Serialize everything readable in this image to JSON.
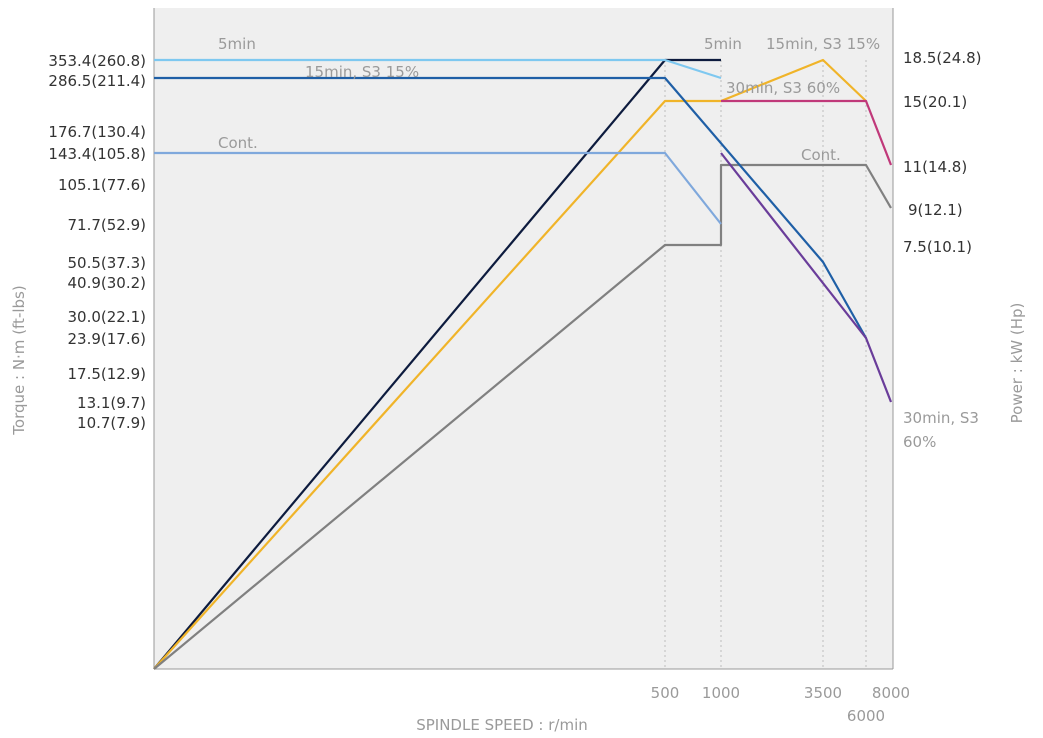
{
  "chart_data": {
    "type": "line",
    "title": "",
    "xlabel": "SPINDLE SPEED : r/min",
    "ylabel_left": "Torque : N·m (ft-lbs)",
    "ylabel_right": "Power : kW (Hp)",
    "grid": false,
    "background": "#efefef",
    "x_ticks": [
      "500",
      "1000",
      "3500",
      "6000",
      "8000"
    ],
    "left_tick_labels": [
      "353.4(260.8)",
      "286.5(211.4)",
      "176.7(130.4)",
      "143.4(105.8)",
      "105.1(77.6)",
      "71.7(52.9)",
      "50.5(37.3)",
      "40.9(30.2)",
      "30.0(22.1)",
      "23.9(17.6)",
      "17.5(12.9)",
      "13.1(9.7)",
      "10.7(7.9)"
    ],
    "right_tick_labels": [
      "18.5(24.8)",
      "15(20.1)",
      "11(14.8)",
      "9(12.1)",
      "7.5(10.1)"
    ],
    "torque_series": [
      {
        "label": "5min",
        "color": "#7ec8f0",
        "points": [
          [
            0,
            353.4
          ],
          [
            500,
            353.4
          ],
          [
            1000,
            286.5
          ]
        ]
      },
      {
        "label": "15min, S3 15%",
        "color": "#1f5fa6",
        "points": [
          [
            0,
            286.5
          ],
          [
            500,
            286.5
          ],
          [
            3500,
            50.5
          ],
          [
            6000,
            23.9
          ]
        ]
      },
      {
        "label": "Cont.",
        "color": "#7fa8dc",
        "points": [
          [
            0,
            143.4
          ],
          [
            500,
            143.4
          ],
          [
            1000,
            71.7
          ]
        ]
      },
      {
        "label": "",
        "color": "#6a3d9a",
        "points": [
          [
            1000,
            143.4
          ],
          [
            6000,
            23.9
          ],
          [
            8000,
            13.1
          ]
        ]
      }
    ],
    "power_series": [
      {
        "label": "5min",
        "color": "#0d1b3e",
        "points": [
          [
            0,
            0
          ],
          [
            500,
            18.5
          ],
          [
            1000,
            18.5
          ]
        ]
      },
      {
        "label": "15min, S3 15%",
        "color": "#f0b429",
        "points": [
          [
            0,
            0
          ],
          [
            500,
            15
          ],
          [
            1000,
            15
          ],
          [
            3500,
            18.5
          ],
          [
            6000,
            15
          ]
        ]
      },
      {
        "label": "30min, S3 60%",
        "color": "#c0397a",
        "points": [
          [
            1000,
            15
          ],
          [
            6000,
            15
          ],
          [
            8000,
            11
          ]
        ]
      },
      {
        "label": "Cont.",
        "color": "#808080",
        "points": [
          [
            0,
            0
          ],
          [
            500,
            7.5
          ],
          [
            1000,
            7.5
          ],
          [
            1000,
            11
          ],
          [
            6000,
            11
          ],
          [
            8000,
            9
          ]
        ]
      }
    ],
    "annotations": [
      "5min",
      "15min, S3 15%",
      "Cont.",
      "5min",
      "15min, S3 15%",
      "30min, S3 60%",
      "Cont.",
      "30min, S3",
      "60%"
    ]
  }
}
